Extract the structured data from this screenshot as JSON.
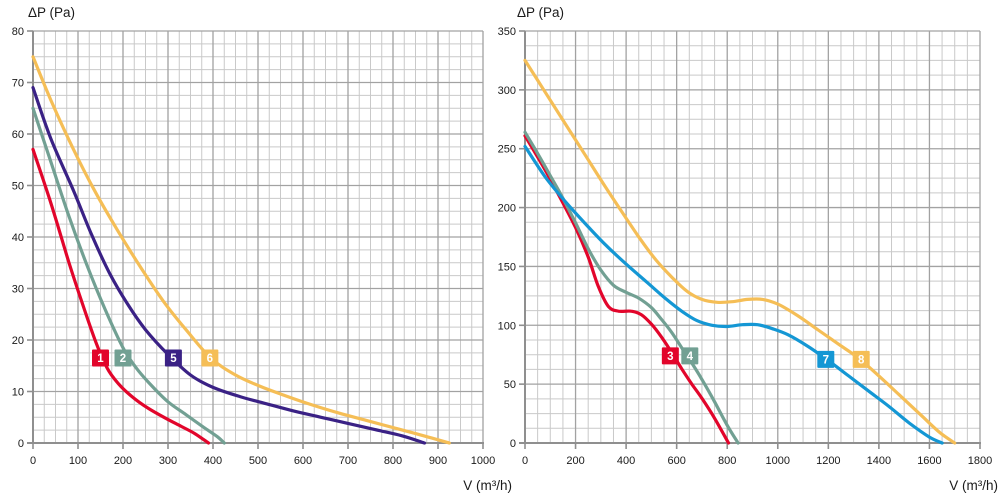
{
  "styles": {
    "background": "#ffffff",
    "grid_minor_color": "#c9c9c9",
    "grid_major_color": "#a2a2a2",
    "axis_color": "#8f8f8f",
    "text_color": "#1a1a1a",
    "chip_text_color": "#ffffff"
  },
  "chart_data": [
    {
      "type": "line",
      "id": "left",
      "title": "ΔP (Pa)",
      "xlabel": "V (m³/h)",
      "x_axis": {
        "min": 0,
        "max": 1000,
        "major_step": 100,
        "minor_step": 25,
        "tick_labels": [
          "0",
          "100",
          "200",
          "300",
          "400",
          "500",
          "600",
          "700",
          "800",
          "900",
          "1000"
        ]
      },
      "y_axis": {
        "min": 0,
        "max": 80,
        "major_step": 10,
        "minor_step": 2.5,
        "tick_labels": [
          "0",
          "10",
          "20",
          "30",
          "40",
          "50",
          "60",
          "70",
          "80"
        ]
      },
      "grid": true,
      "legend": "numbered chips on curves",
      "series": [
        {
          "label": "1",
          "color": "#e2052b",
          "chip": {
            "x": 150,
            "y": 16.5
          },
          "points": [
            [
              0,
              57
            ],
            [
              40,
              46.5
            ],
            [
              80,
              35
            ],
            [
              110,
              27
            ],
            [
              140,
              19.5
            ],
            [
              165,
              14.5
            ],
            [
              190,
              11.5
            ],
            [
              220,
              9
            ],
            [
              255,
              6.8
            ],
            [
              295,
              4.8
            ],
            [
              330,
              3.2
            ],
            [
              360,
              1.8
            ],
            [
              390,
              0
            ]
          ]
        },
        {
          "label": "2",
          "color": "#72a093",
          "chip": {
            "x": 200,
            "y": 16.5
          },
          "points": [
            [
              0,
              65
            ],
            [
              40,
              54.5
            ],
            [
              80,
              44
            ],
            [
              120,
              34.5
            ],
            [
              160,
              26
            ],
            [
              200,
              18.5
            ],
            [
              230,
              14.5
            ],
            [
              265,
              11
            ],
            [
              300,
              8
            ],
            [
              340,
              5.5
            ],
            [
              380,
              3
            ],
            [
              410,
              1.2
            ],
            [
              425,
              0
            ]
          ]
        },
        {
          "label": "5",
          "color": "#3a2185",
          "chip": {
            "x": 312,
            "y": 16.5
          },
          "points": [
            [
              0,
              69
            ],
            [
              40,
              59
            ],
            [
              90,
              49
            ],
            [
              130,
              40.5
            ],
            [
              170,
              33
            ],
            [
              210,
              27
            ],
            [
              250,
              22
            ],
            [
              300,
              17.2
            ],
            [
              350,
              13.2
            ],
            [
              400,
              10.8
            ],
            [
              460,
              9
            ],
            [
              520,
              7.6
            ],
            [
              580,
              6.2
            ],
            [
              640,
              5
            ],
            [
              700,
              3.8
            ],
            [
              760,
              2.6
            ],
            [
              820,
              1.4
            ],
            [
              870,
              0
            ]
          ]
        },
        {
          "label": "6",
          "color": "#f5be56",
          "chip": {
            "x": 393,
            "y": 16.5
          },
          "points": [
            [
              0,
              75
            ],
            [
              40,
              66.5
            ],
            [
              90,
              57
            ],
            [
              140,
              48.5
            ],
            [
              190,
              41
            ],
            [
              240,
              34
            ],
            [
              290,
              27.5
            ],
            [
              340,
              22
            ],
            [
              395,
              16.5
            ],
            [
              450,
              13.2
            ],
            [
              505,
              11
            ],
            [
              560,
              9.2
            ],
            [
              620,
              7.4
            ],
            [
              680,
              5.8
            ],
            [
              740,
              4.4
            ],
            [
              800,
              3
            ],
            [
              860,
              1.6
            ],
            [
              925,
              0
            ]
          ]
        }
      ]
    },
    {
      "type": "line",
      "id": "right",
      "title": "ΔP (Pa)",
      "xlabel": "V (m³/h)",
      "x_axis": {
        "min": 0,
        "max": 1800,
        "major_step": 200,
        "minor_step": 50,
        "tick_labels": [
          "0",
          "200",
          "400",
          "600",
          "800",
          "1000",
          "1200",
          "1400",
          "1600",
          "1800"
        ]
      },
      "y_axis": {
        "min": 0,
        "max": 350,
        "major_step": 50,
        "minor_step": 12.5,
        "tick_labels": [
          "0",
          "50",
          "100",
          "150",
          "200",
          "250",
          "300",
          "350"
        ]
      },
      "grid": true,
      "legend": "numbered chips on curves",
      "series": [
        {
          "label": "3",
          "color": "#e2052b",
          "chip": {
            "x": 575,
            "y": 74
          },
          "points": [
            [
              0,
              261
            ],
            [
              50,
              243
            ],
            [
              100,
              224
            ],
            [
              150,
              204
            ],
            [
              200,
              183
            ],
            [
              250,
              158
            ],
            [
              290,
              133
            ],
            [
              330,
              116
            ],
            [
              370,
              112
            ],
            [
              420,
              112
            ],
            [
              460,
              109
            ],
            [
              500,
              101
            ],
            [
              540,
              90
            ],
            [
              580,
              77
            ],
            [
              620,
              63
            ],
            [
              660,
              50
            ],
            [
              700,
              38
            ],
            [
              750,
              21
            ],
            [
              805,
              0
            ]
          ]
        },
        {
          "label": "4",
          "color": "#72a093",
          "chip": {
            "x": 652,
            "y": 74
          },
          "points": [
            [
              0,
              264
            ],
            [
              50,
              246
            ],
            [
              100,
              227
            ],
            [
              150,
              208
            ],
            [
              200,
              187
            ],
            [
              250,
              165
            ],
            [
              300,
              147
            ],
            [
              350,
              134
            ],
            [
              400,
              128
            ],
            [
              450,
              123
            ],
            [
              500,
              115
            ],
            [
              540,
              105
            ],
            [
              580,
              94
            ],
            [
              620,
              81
            ],
            [
              660,
              68
            ],
            [
              700,
              54
            ],
            [
              750,
              35
            ],
            [
              800,
              15
            ],
            [
              843,
              0
            ]
          ]
        },
        {
          "label": "7",
          "color": "#1497d4",
          "chip": {
            "x": 1190,
            "y": 71
          },
          "points": [
            [
              0,
              252
            ],
            [
              80,
              226
            ],
            [
              160,
              205
            ],
            [
              240,
              186
            ],
            [
              320,
              168
            ],
            [
              400,
              152
            ],
            [
              480,
              137
            ],
            [
              560,
              122
            ],
            [
              620,
              112
            ],
            [
              680,
              104
            ],
            [
              740,
              100
            ],
            [
              800,
              99
            ],
            [
              860,
              100.5
            ],
            [
              920,
              100.5
            ],
            [
              980,
              97
            ],
            [
              1040,
              92
            ],
            [
              1120,
              82
            ],
            [
              1200,
              70
            ],
            [
              1280,
              57
            ],
            [
              1360,
              44
            ],
            [
              1440,
              31
            ],
            [
              1520,
              17
            ],
            [
              1600,
              5
            ],
            [
              1650,
              0
            ]
          ]
        },
        {
          "label": "8",
          "color": "#f5be56",
          "chip": {
            "x": 1330,
            "y": 71
          },
          "points": [
            [
              0,
              325
            ],
            [
              80,
              298
            ],
            [
              160,
              271
            ],
            [
              240,
              244
            ],
            [
              320,
              217
            ],
            [
              400,
              191
            ],
            [
              460,
              172
            ],
            [
              520,
              155
            ],
            [
              580,
              141
            ],
            [
              640,
              129
            ],
            [
              700,
              122
            ],
            [
              760,
              119.5
            ],
            [
              820,
              120
            ],
            [
              880,
              122
            ],
            [
              940,
              122
            ],
            [
              1000,
              118
            ],
            [
              1080,
              108
            ],
            [
              1160,
              96
            ],
            [
              1240,
              84
            ],
            [
              1320,
              72
            ],
            [
              1400,
              57
            ],
            [
              1480,
              41
            ],
            [
              1560,
              25
            ],
            [
              1640,
              9
            ],
            [
              1700,
              0
            ]
          ]
        }
      ]
    }
  ]
}
